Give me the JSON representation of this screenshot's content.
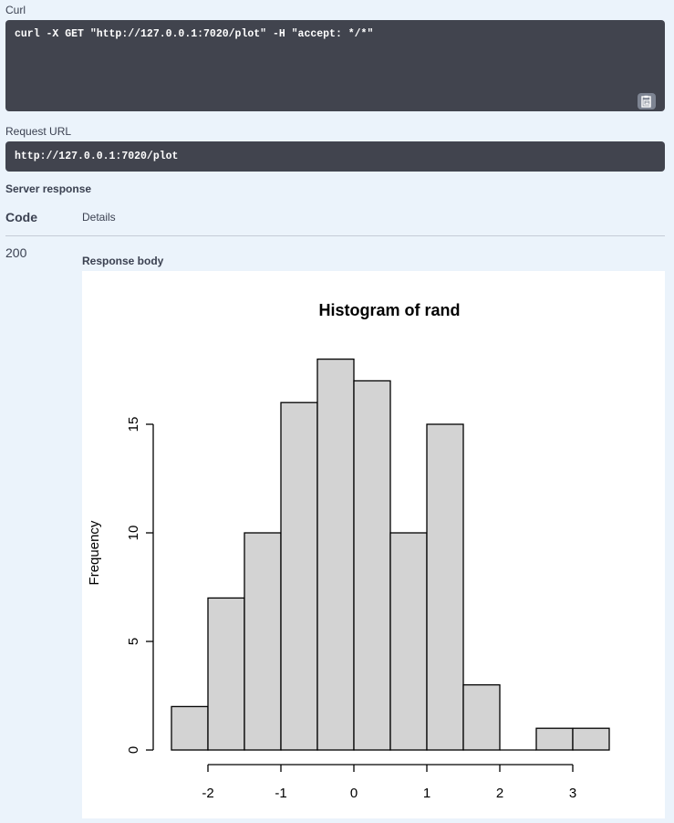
{
  "curl": {
    "label": "Curl",
    "command": "curl -X GET \"http://127.0.0.1:7020/plot\" -H \"accept: */*\""
  },
  "request_url": {
    "label": "Request URL",
    "value": "http://127.0.0.1:7020/plot"
  },
  "server_response": {
    "label": "Server response",
    "code_header": "Code",
    "details_header": "Details",
    "code": "200",
    "response_body_label": "Response body"
  },
  "icons": {
    "copy": "clipboard-icon"
  },
  "colors": {
    "page_bg": "#ebf3fb",
    "code_bg": "#41444e",
    "bar_fill": "#d3d3d3"
  },
  "chart_data": {
    "type": "bar",
    "title": "Histogram of rand",
    "xlabel": "",
    "ylabel": "Frequency",
    "bin_edges": [
      -2.5,
      -2,
      -1.5,
      -1,
      -0.5,
      0,
      0.5,
      1,
      1.5,
      2,
      2.5,
      3,
      3.5
    ],
    "values": [
      2,
      7,
      10,
      16,
      18,
      17,
      10,
      15,
      3,
      0,
      1,
      1
    ],
    "x_ticks": [
      -2,
      -1,
      0,
      1,
      2,
      3
    ],
    "x_tick_labels": [
      "-2",
      "-1",
      "0",
      "1",
      "2",
      "3"
    ],
    "y_ticks": [
      0,
      5,
      10,
      15
    ],
    "y_tick_labels": [
      "0",
      "5",
      "10",
      "15"
    ],
    "xlim": [
      -2,
      3
    ],
    "ylim": [
      0,
      15
    ],
    "grid": false
  }
}
